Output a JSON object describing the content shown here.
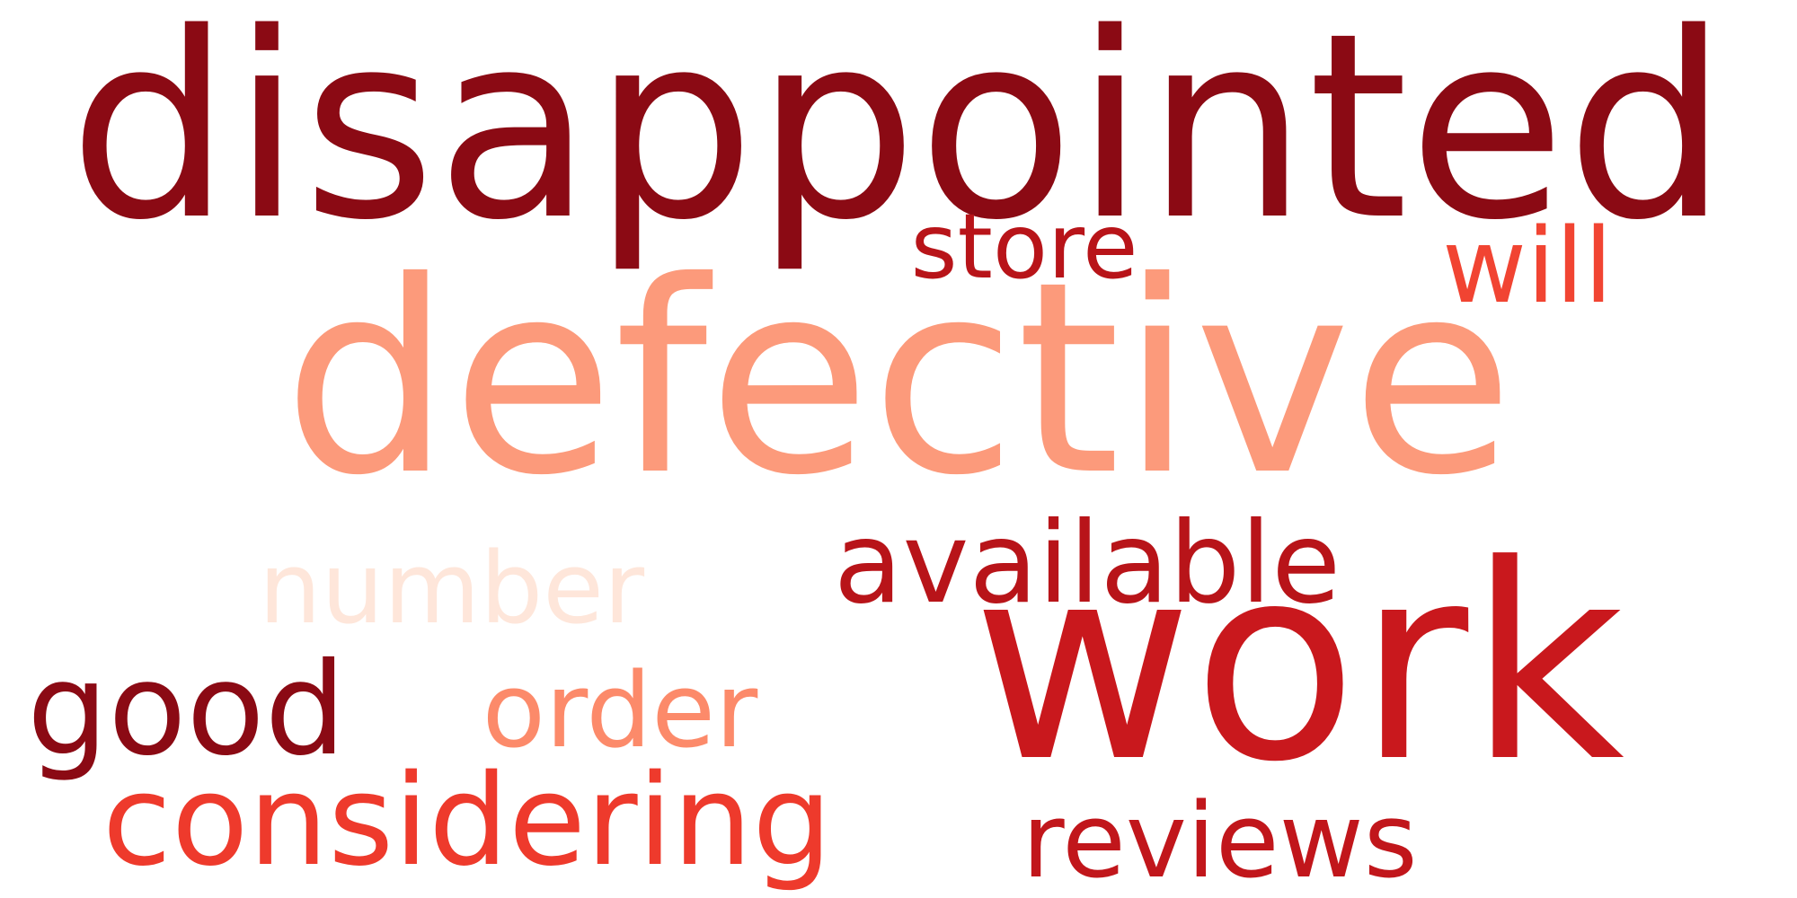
{
  "words": [
    {
      "text": "disappointed",
      "color": "#8b0a14"
    },
    {
      "text": "defective",
      "color": "#fc9a7b"
    },
    {
      "text": "work",
      "color": "#c9181d"
    },
    {
      "text": "store",
      "color": "#b81419"
    },
    {
      "text": "will",
      "color": "#f14432"
    },
    {
      "text": "available",
      "color": "#b81419"
    },
    {
      "text": "number",
      "color": "#fee6da"
    },
    {
      "text": "good",
      "color": "#8b0a14"
    },
    {
      "text": "order",
      "color": "#fc8a6a"
    },
    {
      "text": "considering",
      "color": "#ee3a2c"
    },
    {
      "text": "reviews",
      "color": "#c1161b"
    }
  ]
}
